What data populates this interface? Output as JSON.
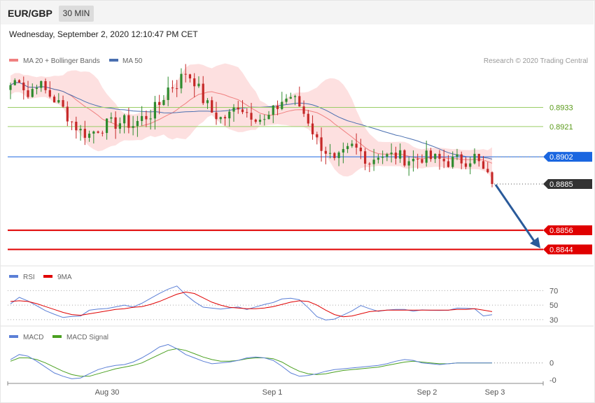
{
  "header": {
    "pair": "EUR/GBP",
    "timeframe": "30 MIN",
    "datetime": "Wednesday, September 2, 2020 12:10:47 PM CET"
  },
  "legend": {
    "ma20": "MA 20 + Bollinger Bands",
    "ma50": "MA 50",
    "credit": "Research © 2020 Trading Central",
    "rsi": "RSI",
    "rsi_ma": "9MA",
    "macd": "MACD",
    "macd_signal": "MACD Signal"
  },
  "colors": {
    "up": "#2e8b2e",
    "down": "#c62828",
    "bollinger_fill": "#fde0e0",
    "ma20": "#f08080",
    "ma50": "#4a6fb0",
    "resistance_green": "#9acd66",
    "pivot_blue": "#1a66e0",
    "support_red": "#e00000",
    "current_dark": "#333333",
    "arrow": "#2a5a9a",
    "rsi_line": "#5b7fd6",
    "rsi_ma": "#e00000",
    "macd_line": "#5b7fd6",
    "macd_signal": "#4aa020"
  },
  "chart_data": [
    {
      "type": "candlestick",
      "title": "EUR/GBP",
      "subtitle": "30 MIN",
      "ylim": [
        0.8835,
        0.8963
      ],
      "x_tick_labels": [
        "Aug 30",
        "Sep 1",
        "Sep 2",
        "Sep 3"
      ],
      "levels": [
        {
          "value": 0.8933,
          "label": "0.8933",
          "role": "resistance",
          "color": "#9acd66"
        },
        {
          "value": 0.8921,
          "label": "0.8921",
          "role": "resistance",
          "color": "#9acd66"
        },
        {
          "value": 0.8902,
          "label": "0.8902",
          "role": "pivot",
          "color": "#1a66e0"
        },
        {
          "value": 0.8885,
          "label": "0.8885",
          "role": "current",
          "color": "#333333"
        },
        {
          "value": 0.8856,
          "label": "0.8856",
          "role": "support",
          "color": "#e00000"
        },
        {
          "value": 0.8844,
          "label": "0.8844",
          "role": "support",
          "color": "#e00000"
        }
      ],
      "close_path": [
        0.8947,
        0.8952,
        0.894,
        0.8949,
        0.8943,
        0.8938,
        0.8932,
        0.8924,
        0.8918,
        0.8916,
        0.892,
        0.8922,
        0.8923,
        0.8924,
        0.8922,
        0.8926,
        0.8929,
        0.8935,
        0.8945,
        0.8948,
        0.8955,
        0.895,
        0.8938,
        0.893,
        0.8926,
        0.8928,
        0.8935,
        0.893,
        0.8928,
        0.8924,
        0.893,
        0.8937,
        0.894,
        0.8934,
        0.8925,
        0.8912,
        0.8906,
        0.8898,
        0.8903,
        0.8908,
        0.8905,
        0.8899,
        0.8904,
        0.8902,
        0.8903,
        0.8901,
        0.89,
        0.8902,
        0.8901,
        0.89,
        0.8899,
        0.89,
        0.89,
        0.8902,
        0.8893,
        0.8885
      ],
      "series": [
        {
          "name": "MA 20 + Bollinger Bands"
        },
        {
          "name": "MA 50"
        }
      ]
    },
    {
      "type": "line",
      "title": "RSI",
      "y_tick_labels": [
        "70",
        "50",
        "30"
      ],
      "ylim": [
        25,
        80
      ],
      "series": [
        {
          "name": "RSI",
          "values": [
            52,
            60,
            57,
            48,
            42,
            38,
            34,
            33,
            36,
            42,
            45,
            44,
            47,
            50,
            48,
            53,
            60,
            66,
            72,
            75,
            65,
            55,
            48,
            45,
            44,
            46,
            47,
            44,
            47,
            51,
            54,
            58,
            60,
            56,
            46,
            34,
            29,
            31,
            36,
            42,
            49,
            45,
            41,
            43,
            44,
            43,
            42,
            43,
            44,
            42,
            43,
            45,
            46,
            45,
            36,
            37
          ]
        },
        {
          "name": "9MA",
          "values": [
            55,
            56,
            55,
            52,
            48,
            44,
            40,
            37,
            36,
            38,
            40,
            42,
            44,
            45,
            47,
            48,
            51,
            55,
            60,
            65,
            68,
            66,
            60,
            54,
            50,
            47,
            46,
            45,
            45,
            46,
            48,
            51,
            54,
            56,
            55,
            50,
            43,
            37,
            34,
            35,
            38,
            41,
            42,
            43,
            43,
            43,
            43,
            43,
            43,
            43,
            43,
            44,
            44,
            45,
            43,
            41
          ]
        }
      ]
    },
    {
      "type": "line",
      "title": "MACD",
      "y_tick_labels": [
        "0",
        "-0"
      ],
      "ylim": [
        -2.2,
        2.4
      ],
      "series": [
        {
          "name": "MACD",
          "values": [
            0.4,
            1.0,
            0.8,
            0.2,
            -0.5,
            -1.2,
            -1.6,
            -1.9,
            -1.8,
            -1.3,
            -0.8,
            -0.5,
            -0.3,
            -0.2,
            0.1,
            0.6,
            1.2,
            1.9,
            2.2,
            1.7,
            1.0,
            0.6,
            0.2,
            -0.1,
            0.0,
            0.1,
            0.3,
            0.6,
            0.7,
            0.6,
            0.3,
            -0.4,
            -1.2,
            -1.6,
            -1.5,
            -1.3,
            -1.0,
            -0.8,
            -0.7,
            -0.6,
            -0.5,
            -0.4,
            -0.3,
            -0.1,
            0.2,
            0.4,
            0.3,
            0.0,
            -0.1,
            -0.2,
            -0.1,
            0.0,
            0.0,
            0.0,
            0.0,
            0.0
          ]
        },
        {
          "name": "MACD Signal",
          "values": [
            0.2,
            0.6,
            0.6,
            0.4,
            0.0,
            -0.5,
            -1.0,
            -1.4,
            -1.6,
            -1.6,
            -1.3,
            -1.0,
            -0.7,
            -0.5,
            -0.3,
            0.0,
            0.5,
            1.0,
            1.5,
            1.7,
            1.5,
            1.1,
            0.7,
            0.4,
            0.2,
            0.2,
            0.3,
            0.5,
            0.6,
            0.6,
            0.5,
            0.1,
            -0.5,
            -1.0,
            -1.3,
            -1.4,
            -1.3,
            -1.1,
            -0.9,
            -0.8,
            -0.7,
            -0.6,
            -0.5,
            -0.3,
            -0.1,
            0.1,
            0.2,
            0.1,
            0.0,
            -0.1,
            -0.1,
            0.0,
            0.0,
            0.0,
            0.0,
            0.0
          ]
        }
      ]
    }
  ]
}
